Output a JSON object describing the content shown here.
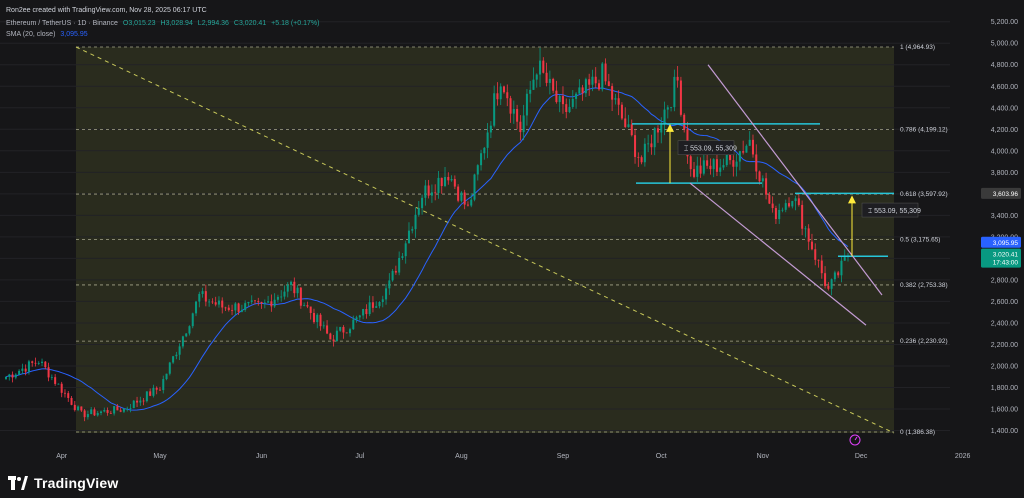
{
  "header": {
    "credit": "Ron2ee created with TradingView.com, Nov 28, 2025 06:17 UTC",
    "symbol": "Ethereum / TetherUS · 1D · Binance",
    "ohlc": {
      "open": "O3,015.23",
      "high": "H3,028.94",
      "low": "L2,994.36",
      "close": "C3,020.41",
      "change": "+5.18 (+0.17%)"
    },
    "sma_label": "SMA (20, close)",
    "sma_value": "3,095.95"
  },
  "brand": "TradingView",
  "colors": {
    "background": "#161618",
    "zone_fill": "#2a2c1e",
    "fib_line": "#a5a58a",
    "up_candle": "#089981",
    "down_candle": "#f23645",
    "sma": "#2962ff",
    "channel": "#c39bd3",
    "cyan": "#26c6da",
    "yellow": "#ffeb3b",
    "trend_dash": "#c8c85a"
  },
  "axes": {
    "y_ticks": [
      "5,200.00",
      "5,000.00",
      "4,800.00",
      "4,600.00",
      "4,400.00",
      "4,200.00",
      "4,000.00",
      "3,800.00",
      "3,600.00",
      "3,400.00",
      "3,200.00",
      "3,000.00",
      "2,800.00",
      "2,600.00",
      "2,400.00",
      "2,200.00",
      "2,000.00",
      "1,800.00",
      "1,600.00",
      "1,400.00"
    ],
    "x_ticks": [
      "Apr",
      "May",
      "Jun",
      "Jul",
      "Aug",
      "Sep",
      "Oct",
      "Nov",
      "Dec",
      "2026"
    ]
  },
  "price_tags": [
    {
      "label": "3,603.96",
      "price": 3603.96,
      "color": "#3a3a3a"
    },
    {
      "label": "3,095.95",
      "price": 3095.95,
      "color": "#2962ff"
    },
    {
      "label": "3,020.41",
      "price": 3020.41,
      "color": "#089981"
    },
    {
      "label": "17:43:00",
      "price": 2940,
      "color": "#089981"
    }
  ],
  "measures": [
    {
      "text": "553.09, 55,309"
    },
    {
      "text": "553.09, 55,309"
    }
  ],
  "chart_data": {
    "type": "candlestick",
    "title": "Ethereum / TetherUS · 1D · Binance",
    "ylim": [
      1300,
      5300
    ],
    "fib_levels": [
      {
        "ratio": "1",
        "price": 4964.93,
        "label": "1 (4,964.93)"
      },
      {
        "ratio": "0.786",
        "price": 4199.12,
        "label": "0.786 (4,199.12)"
      },
      {
        "ratio": "0.618",
        "price": 3597.92,
        "label": "0.618 (3,597.92)"
      },
      {
        "ratio": "0.5",
        "price": 3175.65,
        "label": "0.5 (3,175.65)"
      },
      {
        "ratio": "0.382",
        "price": 2753.38,
        "label": "0.382 (2,753.38)"
      },
      {
        "ratio": "0.236",
        "price": 2230.92,
        "label": "0.236 (2,230.92)"
      },
      {
        "ratio": "0",
        "price": 1386.38,
        "label": "0 (1,386.38)"
      }
    ],
    "key_points": [
      {
        "date": "2025-03-15",
        "close": 1900
      },
      {
        "date": "2025-03-25",
        "close": 2050
      },
      {
        "date": "2025-04-07",
        "close": 1550
      },
      {
        "date": "2025-04-20",
        "close": 1600
      },
      {
        "date": "2025-05-01",
        "close": 1800
      },
      {
        "date": "2025-05-09",
        "close": 2350
      },
      {
        "date": "2025-05-13",
        "close": 2650
      },
      {
        "date": "2025-05-20",
        "close": 2550
      },
      {
        "date": "2025-06-01",
        "close": 2550
      },
      {
        "date": "2025-06-10",
        "close": 2750
      },
      {
        "date": "2025-06-22",
        "close": 2250
      },
      {
        "date": "2025-07-01",
        "close": 2450
      },
      {
        "date": "2025-07-10",
        "close": 2750
      },
      {
        "date": "2025-07-20",
        "close": 3600
      },
      {
        "date": "2025-07-28",
        "close": 3800
      },
      {
        "date": "2025-08-03",
        "close": 3450
      },
      {
        "date": "2025-08-13",
        "close": 4700
      },
      {
        "date": "2025-08-19",
        "close": 4200
      },
      {
        "date": "2025-08-24",
        "close": 4800
      },
      {
        "date": "2025-09-01",
        "close": 4350
      },
      {
        "date": "2025-09-13",
        "close": 4700
      },
      {
        "date": "2025-09-25",
        "close": 3900
      },
      {
        "date": "2025-10-06",
        "close": 4650
      },
      {
        "date": "2025-10-10",
        "close": 3800
      },
      {
        "date": "2025-10-22",
        "close": 3900
      },
      {
        "date": "2025-10-28",
        "close": 4100
      },
      {
        "date": "2025-11-04",
        "close": 3400
      },
      {
        "date": "2025-11-10",
        "close": 3600
      },
      {
        "date": "2025-11-21",
        "close": 2700
      },
      {
        "date": "2025-11-27",
        "close": 3020
      }
    ]
  }
}
